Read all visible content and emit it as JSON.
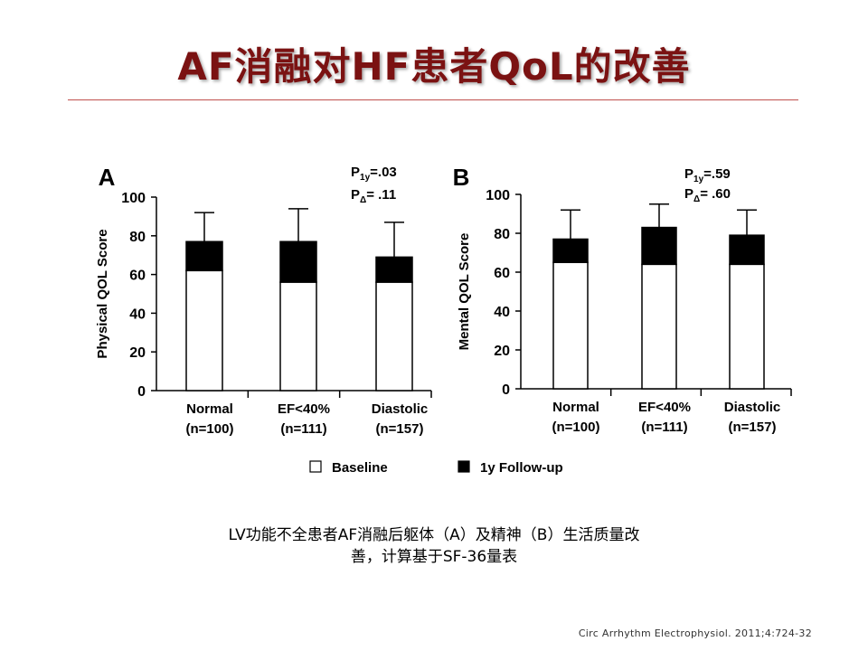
{
  "slide": {
    "title": "AF消融对HF患者QoL的改善",
    "caption_line1": "LV功能不全患者AF消融后躯体（A）及精神（B）生活质量改",
    "caption_line2": "善，计算基于SF-36量表",
    "citation": "Circ Arrhythm Electrophysiol. 2011;4:724-32",
    "accent_color": "#7b1212"
  },
  "chart_data": [
    {
      "type": "bar",
      "panel_label": "A",
      "ylabel": "Physical QOL Score",
      "ylim": [
        0,
        100
      ],
      "yticks": [
        0,
        20,
        40,
        60,
        80,
        100
      ],
      "categories": [
        "Normal (n=100)",
        "EF<40% (n=111)",
        "Diastolic (n=157)"
      ],
      "category_lines": [
        [
          "Normal",
          "(n=100)"
        ],
        [
          "EF<40%",
          "(n=111)"
        ],
        [
          "Diastolic",
          "(n=157)"
        ]
      ],
      "series": [
        {
          "name": "Baseline",
          "values": [
            62,
            56,
            56
          ],
          "color": "#ffffff"
        },
        {
          "name": "1y Follow-up",
          "values": [
            77,
            77,
            69
          ],
          "error_upper": [
            92,
            94,
            87
          ],
          "color": "#000000"
        }
      ],
      "p_values": [
        {
          "label": "P",
          "sub": "1y",
          "value": "=.03"
        },
        {
          "label": "P",
          "sub": "Δ",
          "value": "= .11"
        }
      ]
    },
    {
      "type": "bar",
      "panel_label": "B",
      "ylabel": "Mental QOL Score",
      "ylim": [
        0,
        100
      ],
      "yticks": [
        0,
        20,
        40,
        60,
        80,
        100
      ],
      "categories": [
        "Normal (n=100)",
        "EF<40% (n=111)",
        "Diastolic (n=157)"
      ],
      "category_lines": [
        [
          "Normal",
          "(n=100)"
        ],
        [
          "EF<40%",
          "(n=111)"
        ],
        [
          "Diastolic",
          "(n=157)"
        ]
      ],
      "series": [
        {
          "name": "Baseline",
          "values": [
            65,
            64,
            64
          ],
          "color": "#ffffff"
        },
        {
          "name": "1y Follow-up",
          "values": [
            77,
            83,
            79
          ],
          "error_upper": [
            92,
            95,
            92
          ],
          "color": "#000000"
        }
      ],
      "p_values": [
        {
          "label": "P",
          "sub": "1y",
          "value": "=.59"
        },
        {
          "label": "P",
          "sub": "Δ",
          "value": "= .60"
        }
      ]
    }
  ],
  "legend": [
    {
      "label": "Baseline",
      "color": "#ffffff"
    },
    {
      "label": "1y Follow-up",
      "color": "#000000"
    }
  ]
}
